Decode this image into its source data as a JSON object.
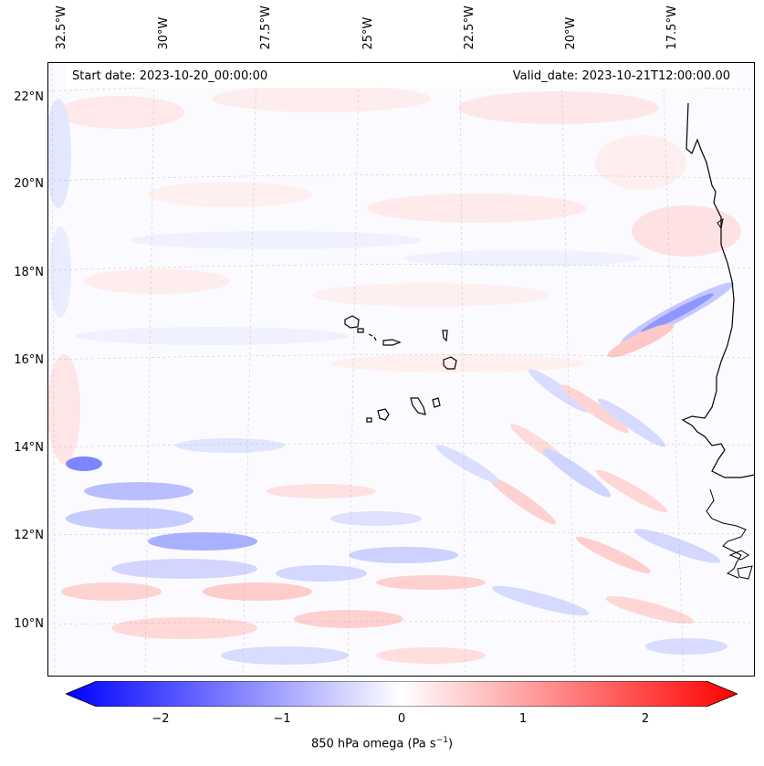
{
  "map": {
    "lon_labels": [
      "32.5°W",
      "30°W",
      "27.5°W",
      "25°W",
      "22.5°W",
      "20°W",
      "17.5°W"
    ],
    "lat_labels": [
      "22°N",
      "20°N",
      "18°N",
      "16°N",
      "14°N",
      "12°N",
      "10°N"
    ],
    "start_date": "Start date: 2023-10-20_00:00:00",
    "valid_date": "Valid_date: 2023-10-21T12:00:00.00"
  },
  "colorbar": {
    "ticks": [
      "−2",
      "−1",
      "0",
      "1",
      "2"
    ],
    "label": "850 hPa omega (Pa s",
    "label_sup": "−1",
    "label_close": ")",
    "min": -2.6,
    "max": 2.6,
    "cmap": "bwr"
  },
  "colors": {
    "negative": "#0000ff",
    "positive": "#ff0000",
    "neutral": "#ffffff",
    "coast": "#000000",
    "grid": "#b0b0b0"
  }
}
